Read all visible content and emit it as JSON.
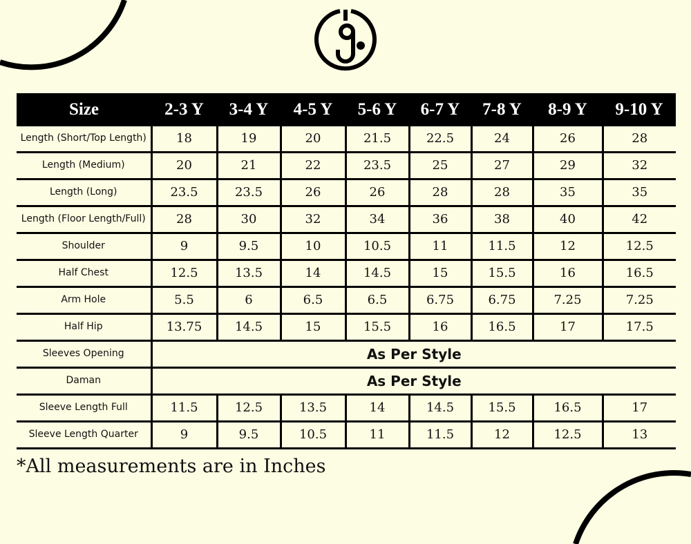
{
  "colors": {
    "background": "#fdfde3",
    "header_bg": "#000000",
    "text": "#111111"
  },
  "logo": {
    "icon": "brand-monogram-logo"
  },
  "table": {
    "headers": [
      "Size",
      "2-3 Y",
      "3-4 Y",
      "4-5 Y",
      "5-6 Y",
      "6-7 Y",
      "7-8 Y",
      "8-9 Y",
      "9-10 Y"
    ],
    "rows": [
      {
        "label": "Length (Short/Top Length)",
        "values": [
          "18",
          "19",
          "20",
          "21.5",
          "22.5",
          "24",
          "26",
          "28"
        ]
      },
      {
        "label": "Length (Medium)",
        "values": [
          "20",
          "21",
          "22",
          "23.5",
          "25",
          "27",
          "29",
          "32"
        ]
      },
      {
        "label": "Length (Long)",
        "values": [
          "23.5",
          "23.5",
          "26",
          "26",
          "28",
          "28",
          "35",
          "35"
        ]
      },
      {
        "label": "Length (Floor Length/Full)",
        "values": [
          "28",
          "30",
          "32",
          "34",
          "36",
          "38",
          "40",
          "42"
        ]
      },
      {
        "label": "Shoulder",
        "values": [
          "9",
          "9.5",
          "10",
          "10.5",
          "11",
          "11.5",
          "12",
          "12.5"
        ]
      },
      {
        "label": "Half Chest",
        "values": [
          "12.5",
          "13.5",
          "14",
          "14.5",
          "15",
          "15.5",
          "16",
          "16.5"
        ]
      },
      {
        "label": "Arm Hole",
        "values": [
          "5.5",
          "6",
          "6.5",
          "6.5",
          "6.75",
          "6.75",
          "7.25",
          "7.25"
        ]
      },
      {
        "label": "Half Hip",
        "values": [
          "13.75",
          "14.5",
          "15",
          "15.5",
          "16",
          "16.5",
          "17",
          "17.5"
        ]
      },
      {
        "label": "Sleeves Opening",
        "span": "As Per Style"
      },
      {
        "label": "Daman",
        "span": "As Per Style"
      },
      {
        "label": "Sleeve Length Full",
        "values": [
          "11.5",
          "12.5",
          "13.5",
          "14",
          "14.5",
          "15.5",
          "16.5",
          "17"
        ]
      },
      {
        "label": "Sleeve Length Quarter",
        "values": [
          "9",
          "9.5",
          "10.5",
          "11",
          "11.5",
          "12",
          "12.5",
          "13"
        ]
      }
    ]
  },
  "footnote": "*All measurements are in Inches"
}
